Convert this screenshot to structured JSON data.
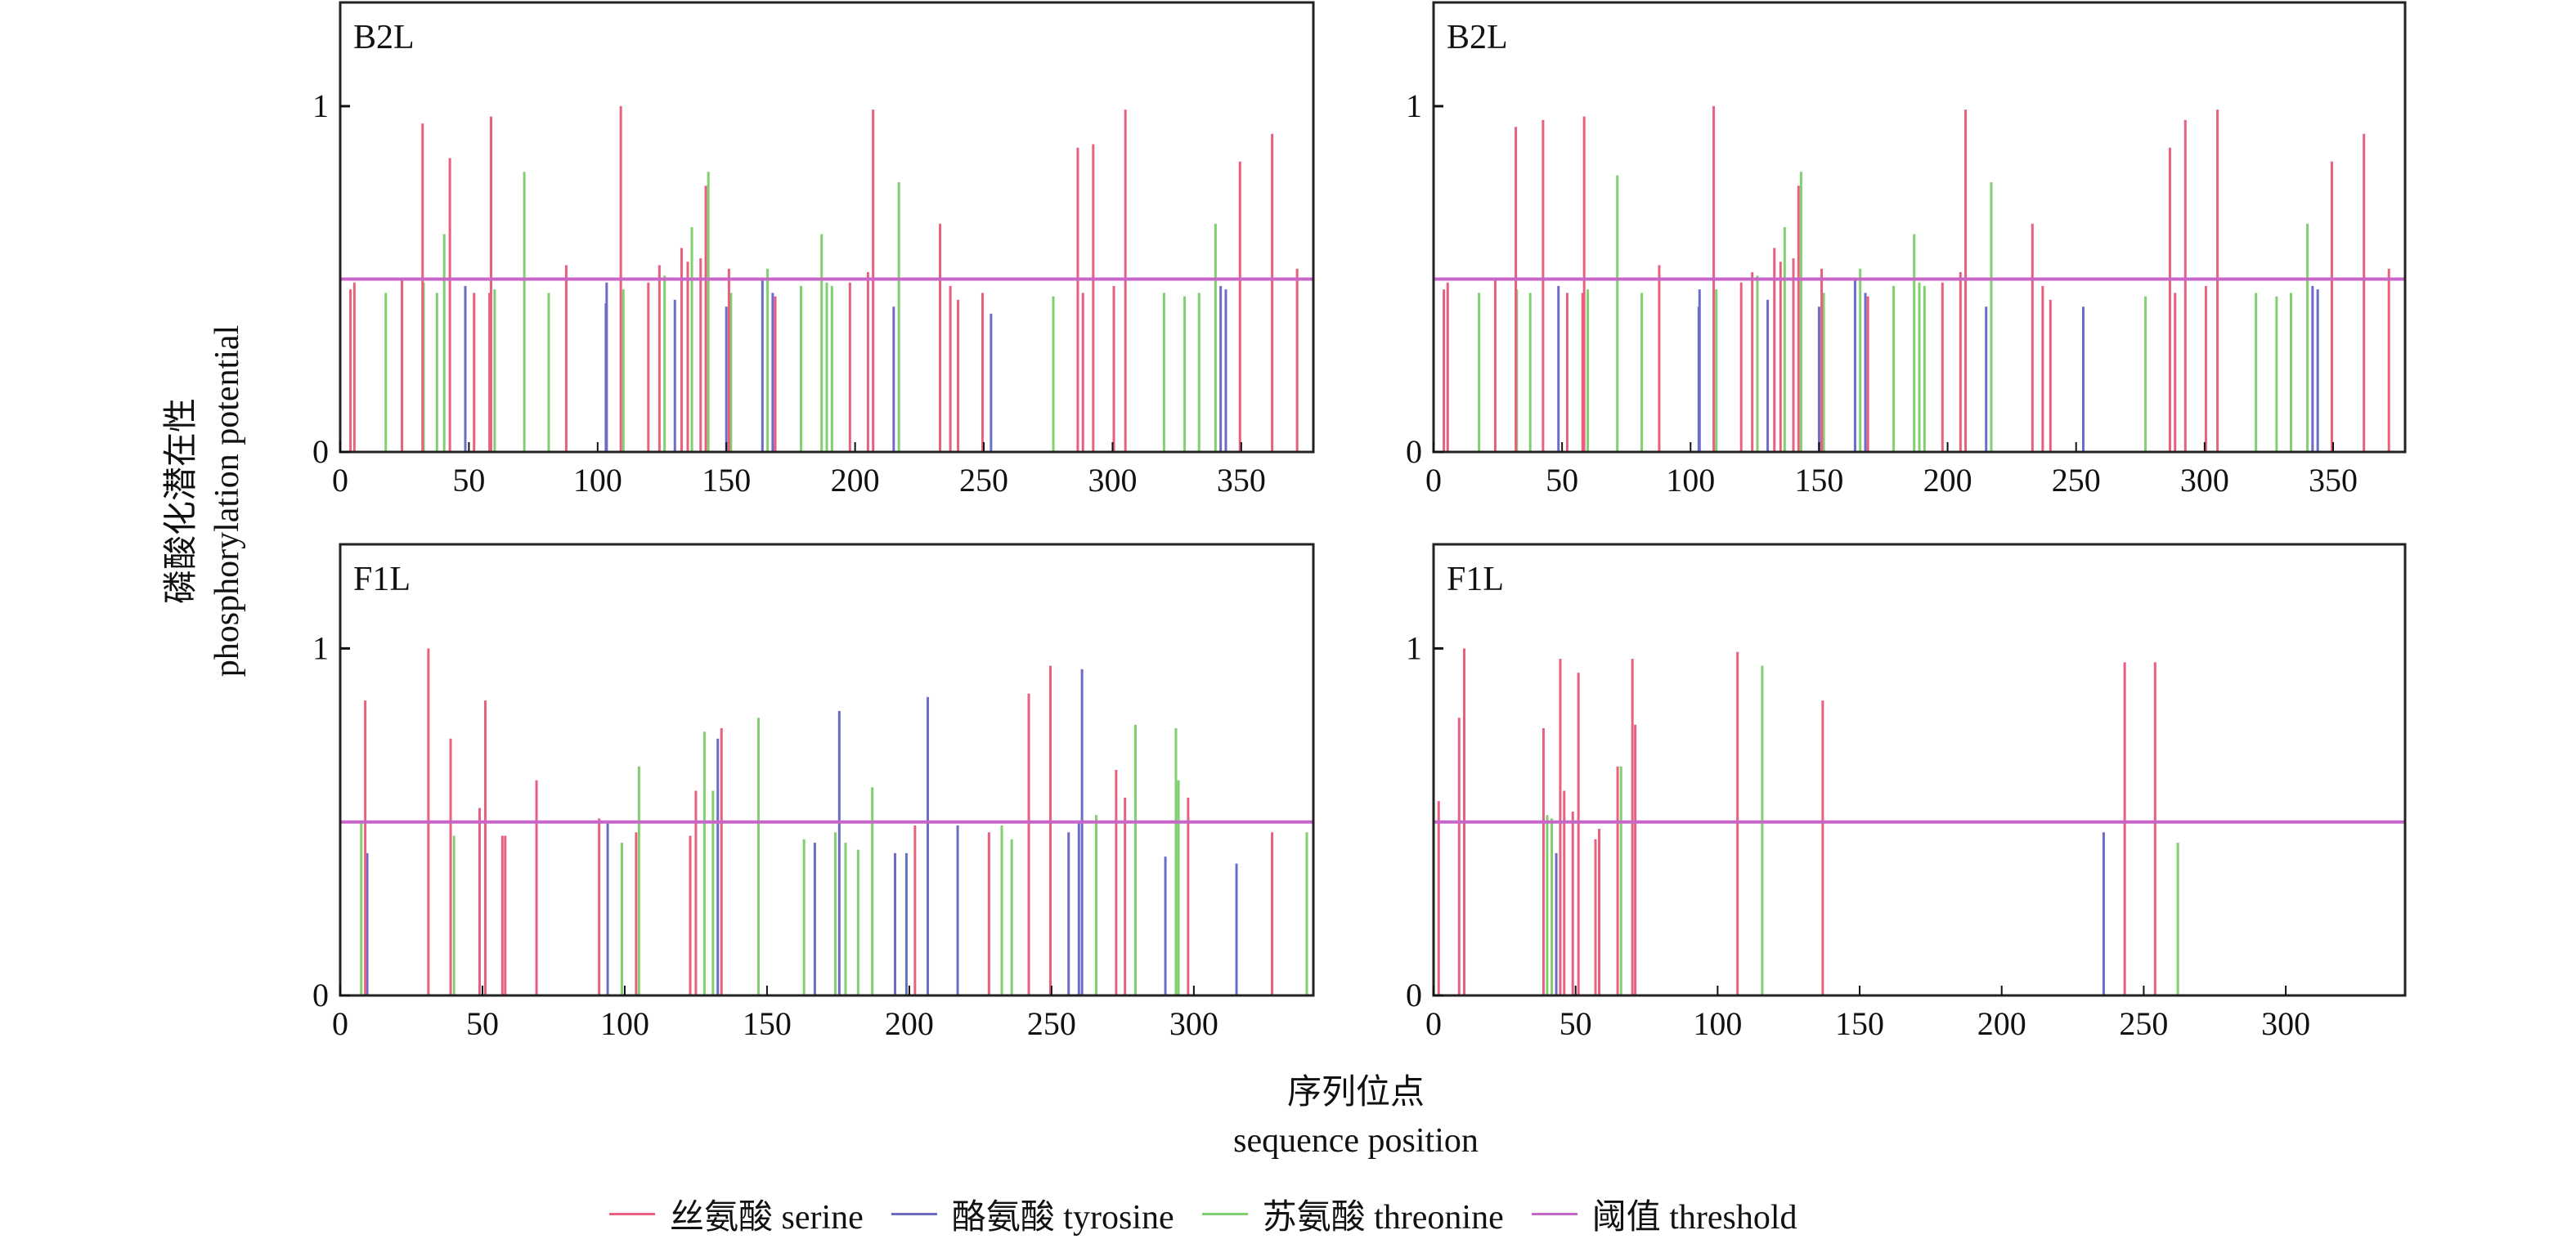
{
  "labels": {
    "ylabel_cn": "磷酸化潜在性",
    "ylabel_en": "phosphorylation potential",
    "xlabel_cn": "序列位点",
    "xlabel_en": "sequence position"
  },
  "legend": [
    {
      "label": "丝氨酸 serine",
      "color": "#e8607e"
    },
    {
      "label": "酪氨酸 tyrosine",
      "color": "#6c6cc6"
    },
    {
      "label": "苏氨酸 threonine",
      "color": "#80d070"
    },
    {
      "label": "阈值 threshold",
      "color": "#c865c8"
    }
  ],
  "chart_data": [
    {
      "type": "bar",
      "title": "B2L",
      "xlim": [
        0,
        378
      ],
      "ylim": [
        0,
        1.3
      ],
      "xticks": [
        0,
        50,
        100,
        150,
        200,
        250,
        300,
        350
      ],
      "yticks": [
        0,
        1
      ],
      "threshold": 0.5,
      "series": [
        {
          "name": "serine",
          "points": [
            [
              4,
              0.47
            ],
            [
              5.5,
              0.49
            ],
            [
              24,
              0.5
            ],
            [
              32,
              0.95
            ],
            [
              42.6,
              0.85
            ],
            [
              52,
              0.46
            ],
            [
              58,
              0.46
            ],
            [
              58.6,
              0.97
            ],
            [
              87.8,
              0.54
            ],
            [
              109,
              1.0
            ],
            [
              119.7,
              0.49
            ],
            [
              124,
              0.54
            ],
            [
              132.6,
              0.59
            ],
            [
              135,
              0.55
            ],
            [
              140,
              0.56
            ],
            [
              142,
              0.77
            ],
            [
              151,
              0.53
            ],
            [
              169,
              0.45
            ],
            [
              198,
              0.49
            ],
            [
              205,
              0.52
            ],
            [
              207,
              0.99
            ],
            [
              233,
              0.66
            ],
            [
              237,
              0.48
            ],
            [
              240,
              0.44
            ],
            [
              249.5,
              0.46
            ],
            [
              286.5,
              0.88
            ],
            [
              288.5,
              0.46
            ],
            [
              292.5,
              0.89
            ],
            [
              300.5,
              0.48
            ],
            [
              305,
              0.99
            ],
            [
              349.5,
              0.84
            ],
            [
              362,
              0.92
            ],
            [
              371.7,
              0.53
            ]
          ]
        },
        {
          "name": "tyrosine",
          "points": [
            [
              48.6,
              0.48
            ],
            [
              103.5,
              0.49
            ],
            [
              103.2,
              0.43
            ],
            [
              130,
              0.44
            ],
            [
              150,
              0.42
            ],
            [
              164,
              0.5
            ],
            [
              168,
              0.46
            ],
            [
              215,
              0.42
            ],
            [
              252.8,
              0.4
            ],
            [
              342,
              0.48
            ],
            [
              344,
              0.47
            ]
          ]
        },
        {
          "name": "threonine",
          "points": [
            [
              17.7,
              0.46
            ],
            [
              32.4,
              0.49
            ],
            [
              37.6,
              0.46
            ],
            [
              40.4,
              0.63
            ],
            [
              60,
              0.47
            ],
            [
              71.5,
              0.81
            ],
            [
              81,
              0.46
            ],
            [
              110,
              0.47
            ],
            [
              126,
              0.51
            ],
            [
              136.6,
              0.65
            ],
            [
              143,
              0.81
            ],
            [
              151.8,
              0.46
            ],
            [
              166,
              0.53
            ],
            [
              179,
              0.48
            ],
            [
              187,
              0.63
            ],
            [
              189,
              0.49
            ],
            [
              191,
              0.48
            ],
            [
              217,
              0.78
            ],
            [
              277,
              0.45
            ],
            [
              320,
              0.46
            ],
            [
              328,
              0.45
            ],
            [
              333.6,
              0.46
            ],
            [
              340,
              0.66
            ]
          ]
        }
      ]
    },
    {
      "type": "bar",
      "title": "B2L",
      "xlim": [
        0,
        378
      ],
      "ylim": [
        0,
        1.3
      ],
      "xticks": [
        0,
        50,
        100,
        150,
        200,
        250,
        300,
        350
      ],
      "yticks": [
        0,
        1
      ],
      "threshold": 0.5,
      "series": [
        {
          "name": "serine",
          "points": [
            [
              4,
              0.47
            ],
            [
              5.5,
              0.49
            ],
            [
              24,
              0.5
            ],
            [
              32,
              0.94
            ],
            [
              42.6,
              0.96
            ],
            [
              52,
              0.46
            ],
            [
              58,
              0.46
            ],
            [
              58.6,
              0.97
            ],
            [
              87.8,
              0.54
            ],
            [
              109,
              1.0
            ],
            [
              119.7,
              0.49
            ],
            [
              124,
              0.52
            ],
            [
              132.6,
              0.59
            ],
            [
              135,
              0.55
            ],
            [
              140,
              0.56
            ],
            [
              142,
              0.77
            ],
            [
              151,
              0.53
            ],
            [
              169,
              0.45
            ],
            [
              198,
              0.49
            ],
            [
              205,
              0.52
            ],
            [
              207,
              0.99
            ],
            [
              233,
              0.66
            ],
            [
              237,
              0.48
            ],
            [
              240,
              0.44
            ],
            [
              286.5,
              0.88
            ],
            [
              288.5,
              0.46
            ],
            [
              292.5,
              0.96
            ],
            [
              300.5,
              0.48
            ],
            [
              305,
              0.99
            ],
            [
              349.5,
              0.84
            ],
            [
              362,
              0.92
            ],
            [
              371.7,
              0.53
            ]
          ]
        },
        {
          "name": "tyrosine",
          "points": [
            [
              48.6,
              0.48
            ],
            [
              103.5,
              0.47
            ],
            [
              103.2,
              0.42
            ],
            [
              130,
              0.44
            ],
            [
              150,
              0.42
            ],
            [
              164,
              0.5
            ],
            [
              168,
              0.46
            ],
            [
              215,
              0.42
            ],
            [
              252.8,
              0.42
            ],
            [
              342,
              0.48
            ],
            [
              344,
              0.47
            ]
          ]
        },
        {
          "name": "threonine",
          "points": [
            [
              17.7,
              0.46
            ],
            [
              32.4,
              0.47
            ],
            [
              37.6,
              0.46
            ],
            [
              60,
              0.47
            ],
            [
              71.5,
              0.8
            ],
            [
              81,
              0.46
            ],
            [
              110,
              0.47
            ],
            [
              126,
              0.51
            ],
            [
              136.6,
              0.65
            ],
            [
              143,
              0.81
            ],
            [
              151.8,
              0.46
            ],
            [
              166,
              0.53
            ],
            [
              179,
              0.48
            ],
            [
              187,
              0.63
            ],
            [
              189,
              0.49
            ],
            [
              191,
              0.48
            ],
            [
              217,
              0.78
            ],
            [
              277,
              0.45
            ],
            [
              320,
              0.46
            ],
            [
              328,
              0.45
            ],
            [
              333.6,
              0.46
            ],
            [
              340,
              0.66
            ]
          ]
        }
      ]
    },
    {
      "type": "bar",
      "title": "F1L",
      "xlim": [
        0,
        342
      ],
      "ylim": [
        0,
        1.3
      ],
      "xticks": [
        0,
        50,
        100,
        150,
        200,
        250,
        300
      ],
      "yticks": [
        0,
        1
      ],
      "threshold": 0.5,
      "series": [
        {
          "name": "serine",
          "points": [
            [
              8.8,
              0.85
            ],
            [
              31,
              1.0
            ],
            [
              38.8,
              0.74
            ],
            [
              49,
              0.54
            ],
            [
              51,
              0.85
            ],
            [
              57,
              0.46
            ],
            [
              58,
              0.46
            ],
            [
              69,
              0.62
            ],
            [
              91,
              0.51
            ],
            [
              104,
              0.47
            ],
            [
              123,
              0.46
            ],
            [
              125,
              0.59
            ],
            [
              134,
              0.77
            ],
            [
              202,
              0.49
            ],
            [
              228,
              0.47
            ],
            [
              242,
              0.87
            ],
            [
              249.6,
              0.95
            ],
            [
              272.7,
              0.65
            ],
            [
              275.8,
              0.57
            ],
            [
              298,
              0.57
            ],
            [
              327.5,
              0.47
            ]
          ]
        },
        {
          "name": "tyrosine",
          "points": [
            [
              9.5,
              0.41
            ],
            [
              94,
              0.5
            ],
            [
              132.7,
              0.74
            ],
            [
              166.8,
              0.44
            ],
            [
              175.4,
              0.82
            ],
            [
              195,
              0.41
            ],
            [
              199,
              0.41
            ],
            [
              206.5,
              0.86
            ],
            [
              217,
              0.49
            ],
            [
              256,
              0.47
            ],
            [
              259.6,
              0.5
            ],
            [
              260.7,
              0.94
            ],
            [
              290,
              0.4
            ],
            [
              315,
              0.38
            ]
          ]
        },
        {
          "name": "threonine",
          "points": [
            [
              7.4,
              0.5
            ],
            [
              40,
              0.46
            ],
            [
              99,
              0.44
            ],
            [
              105,
              0.66
            ],
            [
              128,
              0.76
            ],
            [
              131,
              0.59
            ],
            [
              147,
              0.8
            ],
            [
              163,
              0.45
            ],
            [
              174,
              0.47
            ],
            [
              177.6,
              0.44
            ],
            [
              182,
              0.42
            ],
            [
              187,
              0.6
            ],
            [
              232.5,
              0.49
            ],
            [
              236,
              0.45
            ],
            [
              265.7,
              0.52
            ],
            [
              279.5,
              0.78
            ],
            [
              293.7,
              0.77
            ],
            [
              294.6,
              0.62
            ],
            [
              339.7,
              0.47
            ]
          ]
        }
      ]
    },
    {
      "type": "bar",
      "title": "F1L",
      "xlim": [
        0,
        342
      ],
      "ylim": [
        0,
        1.3
      ],
      "xticks": [
        0,
        50,
        100,
        150,
        200,
        250,
        300
      ],
      "yticks": [
        0,
        1
      ],
      "threshold": 0.5,
      "series": [
        {
          "name": "serine",
          "points": [
            [
              1.8,
              0.56
            ],
            [
              9,
              0.8
            ],
            [
              10.8,
              1.0
            ],
            [
              38.7,
              0.77
            ],
            [
              44.6,
              0.97
            ],
            [
              46,
              0.59
            ],
            [
              49,
              0.53
            ],
            [
              51,
              0.93
            ],
            [
              57,
              0.45
            ],
            [
              58.3,
              0.48
            ],
            [
              64.8,
              0.66
            ],
            [
              70,
              0.97
            ],
            [
              71,
              0.78
            ],
            [
              107,
              0.99
            ],
            [
              137,
              0.85
            ],
            [
              243.3,
              0.96
            ],
            [
              254,
              0.96
            ]
          ]
        },
        {
          "name": "tyrosine",
          "points": [
            [
              43.2,
              0.41
            ],
            [
              235.9,
              0.47
            ]
          ]
        },
        {
          "name": "threonine",
          "points": [
            [
              40,
              0.52
            ],
            [
              41.6,
              0.51
            ],
            [
              66,
              0.66
            ],
            [
              115.7,
              0.95
            ],
            [
              262,
              0.44
            ]
          ]
        }
      ]
    }
  ]
}
